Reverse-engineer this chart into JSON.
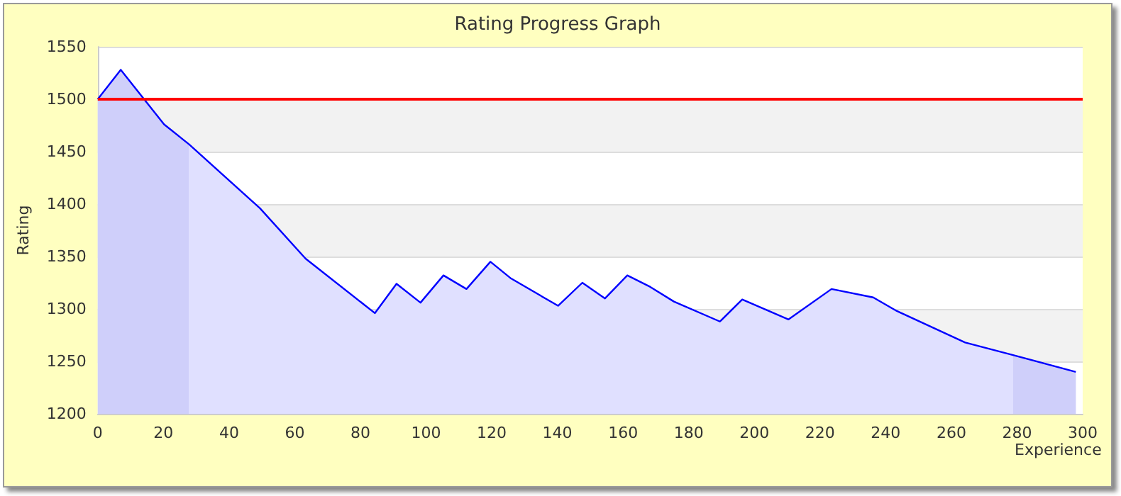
{
  "chart_data": {
    "type": "area",
    "title": "Rating Progress Graph",
    "xlabel": "Experience",
    "ylabel": "Rating",
    "series": [
      {
        "color": "#0000ff",
        "x": [
          0,
          7,
          20.2,
          27.8,
          49.4,
          63.3,
          84.4,
          91,
          98.3,
          105.3,
          112.3,
          119.6,
          125.9,
          140.2,
          147.6,
          154.5,
          161.3,
          168.3,
          175.5,
          189.5,
          196.3,
          210.4,
          223.5,
          236.2,
          243.4,
          264.2,
          278.8,
          297.9
        ],
        "values": [
          1500,
          1528,
          1476,
          1457,
          1396,
          1348,
          1296,
          1324,
          1306,
          1332,
          1319,
          1345,
          1329,
          1303,
          1325,
          1310,
          1332,
          1321,
          1307,
          1288,
          1309,
          1290,
          1319,
          1311,
          1298,
          1268,
          1256,
          1240
        ]
      }
    ],
    "xlim": [
      0,
      300
    ],
    "xticks": [
      0,
      20,
      40,
      60,
      80,
      100,
      120,
      140,
      160,
      180,
      200,
      220,
      240,
      260,
      280,
      300
    ],
    "ylim": [
      1200,
      1550
    ],
    "yticks": [
      1200,
      1250,
      1300,
      1350,
      1400,
      1450,
      1500,
      1550
    ],
    "ref_lines": [
      {
        "axis": "y",
        "value": 1500,
        "color": "#ff0000"
      }
    ],
    "bands": [
      {
        "axis": "x",
        "from": 0,
        "to": 27.8,
        "color": "#cfcffa"
      },
      {
        "axis": "x",
        "from": 278.8,
        "to": 297.9,
        "color": "#cfcffa"
      }
    ],
    "grid": "y",
    "marker": "none",
    "line_style": "solid"
  }
}
